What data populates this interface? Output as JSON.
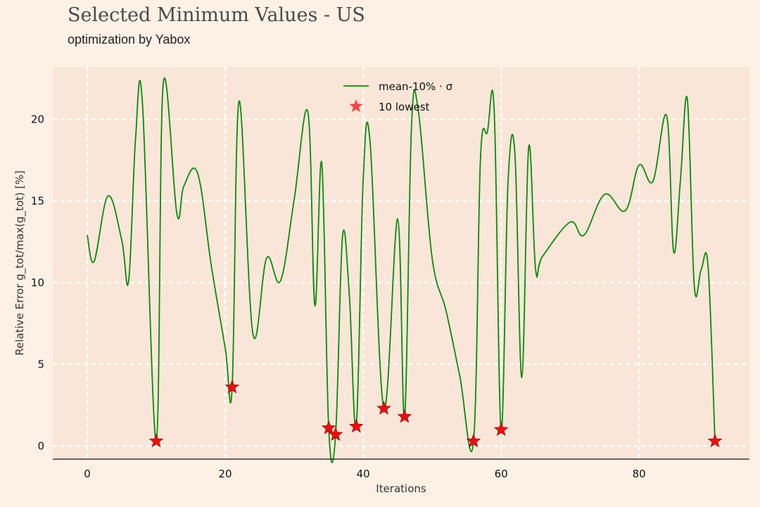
{
  "header": {
    "title": "Selected Minimum Values - US",
    "subtitle": "optimization by Yabox"
  },
  "colors": {
    "background": "#fdf1e6",
    "plot_background": "#f9e6d8",
    "line": "#0a8a0a",
    "marker": "#e81010",
    "grid": "#ffffff"
  },
  "chart_data": {
    "type": "line",
    "xlabel": "Iterations",
    "ylabel": "Relative Error g_tot/max(g_tot) [%]",
    "xlim": [
      -5,
      96
    ],
    "ylim": [
      -0.8,
      23.2
    ],
    "xticks": [
      0,
      20,
      40,
      60,
      80
    ],
    "yticks": [
      0,
      5,
      10,
      15,
      20
    ],
    "grid": true,
    "legend_position": "top-center",
    "series": [
      {
        "name": "mean-10% · σ",
        "kind": "line",
        "x": [
          0,
          1,
          3,
          5,
          6,
          7,
          8,
          10,
          11,
          13,
          14,
          16,
          18,
          20,
          21,
          22,
          24,
          26,
          28,
          30,
          32,
          33,
          34,
          35,
          36,
          37,
          38,
          39,
          40,
          41,
          43,
          45,
          46,
          47,
          48,
          50,
          52,
          54,
          56,
          57,
          58,
          59,
          60,
          61,
          62,
          63,
          64,
          65,
          66,
          70,
          72,
          75,
          78,
          80,
          82,
          84,
          85,
          86,
          87,
          88,
          89,
          90,
          91
        ],
        "y": [
          12.9,
          11.3,
          15.3,
          12.6,
          10.1,
          18.8,
          21.0,
          0.3,
          22.1,
          14.2,
          15.9,
          16.7,
          11.0,
          6.0,
          3.6,
          21.1,
          6.9,
          11.5,
          10.1,
          15.1,
          20.4,
          8.6,
          17.3,
          1.1,
          0.7,
          12.8,
          9.2,
          1.2,
          16.3,
          18.6,
          2.3,
          13.9,
          1.8,
          19.5,
          20.5,
          11.5,
          8.3,
          4.3,
          0.3,
          17.5,
          19.2,
          20.5,
          1.0,
          16.1,
          17.9,
          4.2,
          18.3,
          10.8,
          11.6,
          13.7,
          12.9,
          15.4,
          14.4,
          17.2,
          16.2,
          20.2,
          11.9,
          16.3,
          21.2,
          9.8,
          10.8,
          11.0,
          0.3
        ]
      },
      {
        "name": "10 lowest",
        "kind": "scatter",
        "x": [
          10,
          21,
          35,
          36,
          39,
          43,
          46,
          56,
          60,
          91
        ],
        "y": [
          0.3,
          3.6,
          1.1,
          0.7,
          1.2,
          2.3,
          1.8,
          0.3,
          1.0,
          0.3
        ]
      }
    ]
  }
}
